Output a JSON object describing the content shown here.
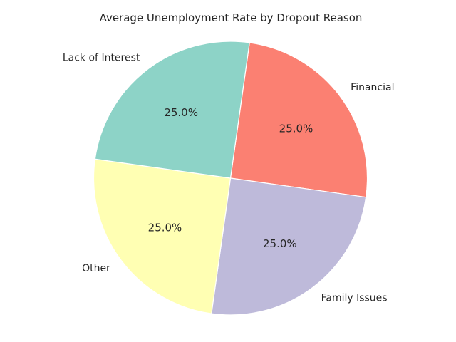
{
  "chart_data": {
    "type": "pie",
    "title": "Average Unemployment Rate by Dropout Reason",
    "categories": [
      "Financial",
      "Family Issues",
      "Other",
      "Lack of Interest"
    ],
    "values": [
      25.0,
      25.0,
      25.0,
      25.0
    ],
    "percent_labels": [
      "25.0%",
      "25.0%",
      "25.0%",
      "25.0%"
    ],
    "colors": [
      "#fb8072",
      "#bebada",
      "#ffffb3",
      "#8dd3c7"
    ],
    "start_angle_deg": 82,
    "direction": "clockwise",
    "legend": "none"
  }
}
